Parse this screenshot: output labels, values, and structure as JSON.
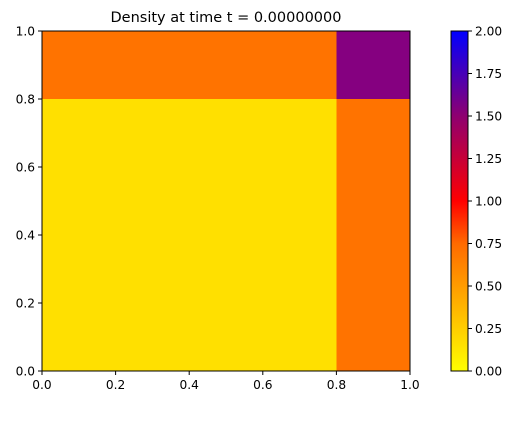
{
  "chart_data": {
    "type": "heatmap",
    "title": "Density at time t =     0.00000000",
    "xlabel": "",
    "ylabel": "",
    "xlim": [
      0,
      1
    ],
    "ylim": [
      0,
      1
    ],
    "x_ticks": [
      "0.0",
      "0.2",
      "0.4",
      "0.6",
      "0.8",
      "1.0"
    ],
    "y_ticks": [
      "0.0",
      "0.2",
      "0.4",
      "0.6",
      "0.8",
      "1.0"
    ],
    "grid": false,
    "regions": [
      {
        "x": [
          0.0,
          0.8
        ],
        "y": [
          0.0,
          0.8
        ],
        "value": 0.1,
        "color": "#FFE000"
      },
      {
        "x": [
          0.8,
          1.0
        ],
        "y": [
          0.0,
          0.8
        ],
        "value": 0.5,
        "color": "#FF7300"
      },
      {
        "x": [
          0.0,
          0.8
        ],
        "y": [
          0.8,
          1.0
        ],
        "value": 0.5,
        "color": "#FF7300"
      },
      {
        "x": [
          0.8,
          1.0
        ],
        "y": [
          0.8,
          1.0
        ],
        "value": 1.6,
        "color": "#850080"
      }
    ],
    "colorbar": {
      "range": [
        0,
        2
      ],
      "ticks": [
        "0.00",
        "0.25",
        "0.50",
        "0.75",
        "1.00",
        "1.25",
        "1.50",
        "1.75",
        "2.00"
      ],
      "colormap": [
        {
          "value": 0.0,
          "color": "#FFFF00"
        },
        {
          "value": 0.75,
          "color": "#FF6A00"
        },
        {
          "value": 1.0,
          "color": "#FF0000"
        },
        {
          "value": 1.5,
          "color": "#8E0070"
        },
        {
          "value": 2.0,
          "color": "#0000FF"
        }
      ]
    }
  }
}
